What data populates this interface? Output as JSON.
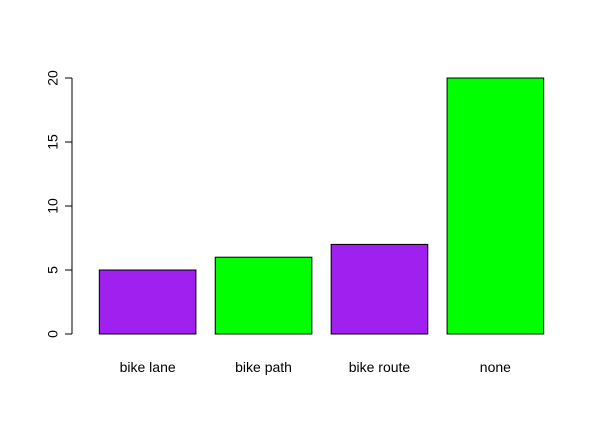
{
  "chart_data": {
    "type": "bar",
    "categories": [
      "bike lane",
      "bike path",
      "bike route",
      "none"
    ],
    "values": [
      5,
      6,
      7,
      20
    ],
    "colors": [
      "#a020f0",
      "#00ff00",
      "#a020f0",
      "#00ff00"
    ],
    "ylim": [
      0,
      20
    ],
    "yticks": [
      0,
      5,
      10,
      15,
      20
    ],
    "ytick_labels": [
      "0",
      "5",
      "10",
      "15",
      "20"
    ],
    "grid": false,
    "title": "",
    "xlabel": "",
    "ylabel": ""
  }
}
